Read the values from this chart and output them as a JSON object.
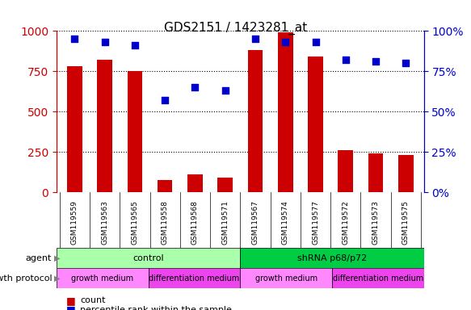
{
  "title": "GDS2151 / 1423281_at",
  "samples": [
    "GSM119559",
    "GSM119563",
    "GSM119565",
    "GSM119558",
    "GSM119568",
    "GSM119571",
    "GSM119567",
    "GSM119574",
    "GSM119577",
    "GSM119572",
    "GSM119573",
    "GSM119575"
  ],
  "counts": [
    780,
    820,
    750,
    75,
    110,
    90,
    880,
    990,
    840,
    260,
    240,
    230
  ],
  "percentile_ranks": [
    95,
    93,
    91,
    57,
    65,
    63,
    95,
    93,
    93,
    82,
    81,
    80
  ],
  "bar_color": "#CC0000",
  "dot_color": "#0000CC",
  "ylim_left": [
    0,
    1000
  ],
  "ylim_right": [
    0,
    100
  ],
  "yticks_left": [
    0,
    250,
    500,
    750,
    1000
  ],
  "yticks_right": [
    0,
    25,
    50,
    75,
    100
  ],
  "grid_color": "black",
  "grid_style": "dotted",
  "agent_groups": [
    {
      "label": "control",
      "start": 0,
      "end": 6,
      "color": "#AAFFAA"
    },
    {
      "label": "shRNA p68/p72",
      "start": 6,
      "end": 12,
      "color": "#00CC44"
    }
  ],
  "growth_groups": [
    {
      "label": "growth medium",
      "start": 0,
      "end": 3,
      "color": "#FF88FF"
    },
    {
      "label": "differentiation medium",
      "start": 3,
      "end": 6,
      "color": "#EE44EE"
    },
    {
      "label": "growth medium",
      "start": 6,
      "end": 9,
      "color": "#FF88FF"
    },
    {
      "label": "differentiation medium",
      "start": 9,
      "end": 12,
      "color": "#EE44EE"
    }
  ],
  "agent_label": "agent",
  "growth_label": "growth protocol",
  "legend_count_label": "count",
  "legend_pct_label": "percentile rank within the sample",
  "tick_gray": "#BBBBBB",
  "xlabel_color": "#333333",
  "axis_left_color": "#CC0000",
  "axis_right_color": "#0000CC",
  "bar_width": 0.5
}
